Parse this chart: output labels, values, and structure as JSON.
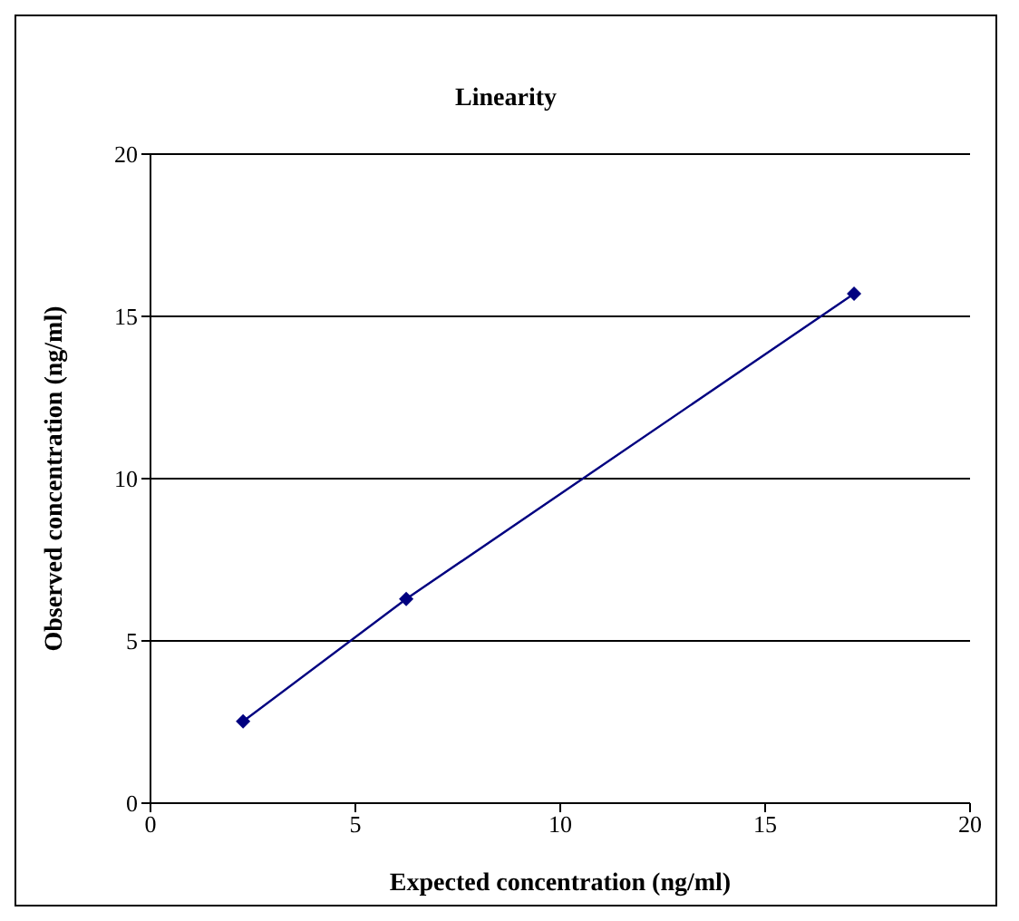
{
  "chart_data": {
    "type": "line",
    "title": "Linearity",
    "xlabel": "Expected concentration (ng/ml)",
    "ylabel": "Observed concentration (ng/ml)",
    "x": [
      2.26,
      6.24,
      17.17
    ],
    "series": [
      {
        "color": "#000080",
        "values": [
          2.52,
          6.29,
          15.7
        ]
      }
    ],
    "xlim": [
      0,
      20
    ],
    "xticks": [
      0,
      5,
      10,
      15,
      20
    ],
    "ylim": [
      0,
      20
    ],
    "yticks": [
      0,
      5,
      10,
      15,
      20
    ],
    "grid": "y",
    "marker": "diamond",
    "line_style": "solid"
  }
}
